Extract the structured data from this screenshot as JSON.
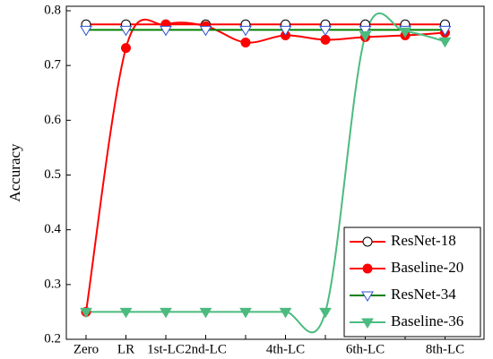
{
  "chart_data": {
    "type": "line",
    "y_label": "Accuracy",
    "categories": [
      "Zero",
      "LR",
      "1st-LC",
      "2nd-LC",
      null,
      "4th-LC",
      null,
      "6th-LC",
      null,
      "8th-LC"
    ],
    "ylim": [
      0.2,
      0.8
    ],
    "yticks": [
      0.2,
      0.3,
      0.4,
      0.5,
      0.6,
      0.7,
      0.8
    ],
    "legend": "lower right",
    "series": [
      {
        "name": "ResNet-18",
        "color": "#ff0000",
        "marker": "circle",
        "filled": false,
        "values": [
          0.775,
          0.775,
          0.775,
          0.775,
          0.775,
          0.775,
          0.775,
          0.775,
          0.775,
          0.775
        ]
      },
      {
        "name": "Baseline-20",
        "color": "#ff0000",
        "marker": "circle",
        "filled": true,
        "values": [
          0.25,
          0.732,
          0.775,
          0.772,
          0.742,
          0.755,
          0.747,
          0.752,
          0.755,
          0.76
        ]
      },
      {
        "name": "ResNet-34",
        "color": "#008000",
        "marker": "triangle-down",
        "filled": false,
        "values": [
          0.765,
          0.765,
          0.765,
          0.765,
          0.765,
          0.765,
          0.765,
          0.765,
          0.765,
          0.765
        ]
      },
      {
        "name": "Baseline-36",
        "color": "#4cbb7f",
        "marker": "triangle-down",
        "filled": true,
        "values": [
          0.25,
          0.25,
          0.25,
          0.25,
          0.25,
          0.25,
          0.25,
          0.755,
          0.762,
          0.744
        ]
      }
    ]
  }
}
